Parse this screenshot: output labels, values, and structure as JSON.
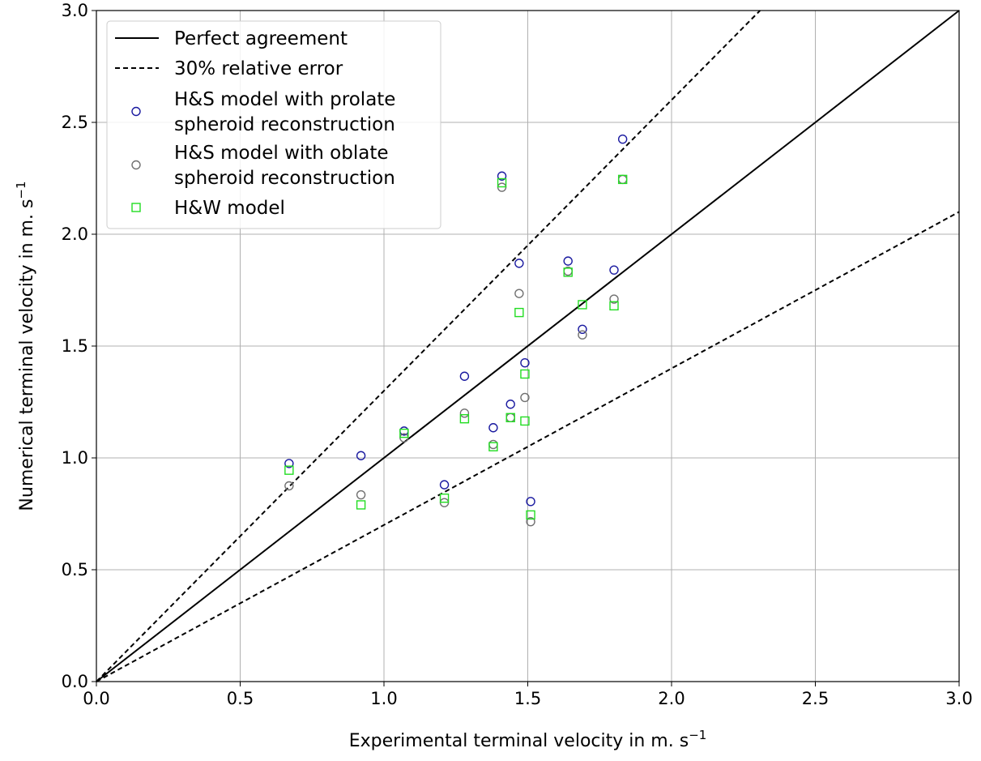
{
  "chart_data": {
    "type": "scatter",
    "title": "",
    "xlabel": "Experimental terminal velocity in m. s",
    "xlabel_sup": "−1",
    "ylabel": "Numerical terminal velocity in m. s",
    "ylabel_sup": "−1",
    "xlim": [
      0.0,
      3.0
    ],
    "ylim": [
      0.0,
      3.0
    ],
    "xticks": [
      "0.0",
      "0.5",
      "1.0",
      "1.5",
      "2.0",
      "2.5",
      "3.0"
    ],
    "yticks": [
      "0.0",
      "0.5",
      "1.0",
      "1.5",
      "2.0",
      "2.5",
      "3.0"
    ],
    "grid": true,
    "legend_position": "top-left",
    "lines": [
      {
        "name": "Perfect agreement",
        "style": "solid",
        "color": "#000000",
        "slope": 1.0
      },
      {
        "name": "30% relative error",
        "style": "dashed",
        "color": "#000000",
        "slope": 1.3
      },
      {
        "name": "",
        "style": "dashed",
        "color": "#000000",
        "slope": 0.7
      }
    ],
    "series": [
      {
        "name": "H&S model with prolate spheroid reconstruction",
        "name_lines": [
          "H&S model with prolate",
          "spheroid reconstruction"
        ],
        "marker": "circle",
        "color": "#1a1aa0",
        "points": [
          [
            0.67,
            0.975
          ],
          [
            0.92,
            1.01
          ],
          [
            1.07,
            1.12
          ],
          [
            1.21,
            0.88
          ],
          [
            1.28,
            1.365
          ],
          [
            1.38,
            1.135
          ],
          [
            1.41,
            2.26
          ],
          [
            1.44,
            1.24
          ],
          [
            1.47,
            1.87
          ],
          [
            1.49,
            1.425
          ],
          [
            1.51,
            0.805
          ],
          [
            1.64,
            1.88
          ],
          [
            1.69,
            1.575
          ],
          [
            1.8,
            1.84
          ],
          [
            1.83,
            2.425
          ]
        ]
      },
      {
        "name": "H&S model with oblate spheroid reconstruction",
        "name_lines": [
          "H&S model with oblate",
          "spheroid reconstruction"
        ],
        "marker": "circle",
        "color": "#707070",
        "points": [
          [
            0.67,
            0.875
          ],
          [
            0.92,
            0.835
          ],
          [
            1.07,
            1.09
          ],
          [
            1.21,
            0.8
          ],
          [
            1.28,
            1.2
          ],
          [
            1.38,
            1.06
          ],
          [
            1.41,
            2.21
          ],
          [
            1.44,
            1.18
          ],
          [
            1.47,
            1.735
          ],
          [
            1.49,
            1.27
          ],
          [
            1.51,
            0.715
          ],
          [
            1.64,
            1.835
          ],
          [
            1.69,
            1.55
          ],
          [
            1.8,
            1.71
          ],
          [
            1.83,
            2.245
          ]
        ]
      },
      {
        "name": "H&W model",
        "name_lines": [
          "H&W model"
        ],
        "marker": "square",
        "color": "#22dd22",
        "points": [
          [
            0.67,
            0.945
          ],
          [
            0.92,
            0.79
          ],
          [
            1.07,
            1.11
          ],
          [
            1.21,
            0.82
          ],
          [
            1.28,
            1.175
          ],
          [
            1.38,
            1.05
          ],
          [
            1.41,
            2.23
          ],
          [
            1.44,
            1.18
          ],
          [
            1.47,
            1.65
          ],
          [
            1.49,
            1.375
          ],
          [
            1.49,
            1.165
          ],
          [
            1.51,
            0.745
          ],
          [
            1.64,
            1.83
          ],
          [
            1.69,
            1.685
          ],
          [
            1.8,
            1.68
          ],
          [
            1.83,
            2.245
          ]
        ]
      }
    ]
  }
}
